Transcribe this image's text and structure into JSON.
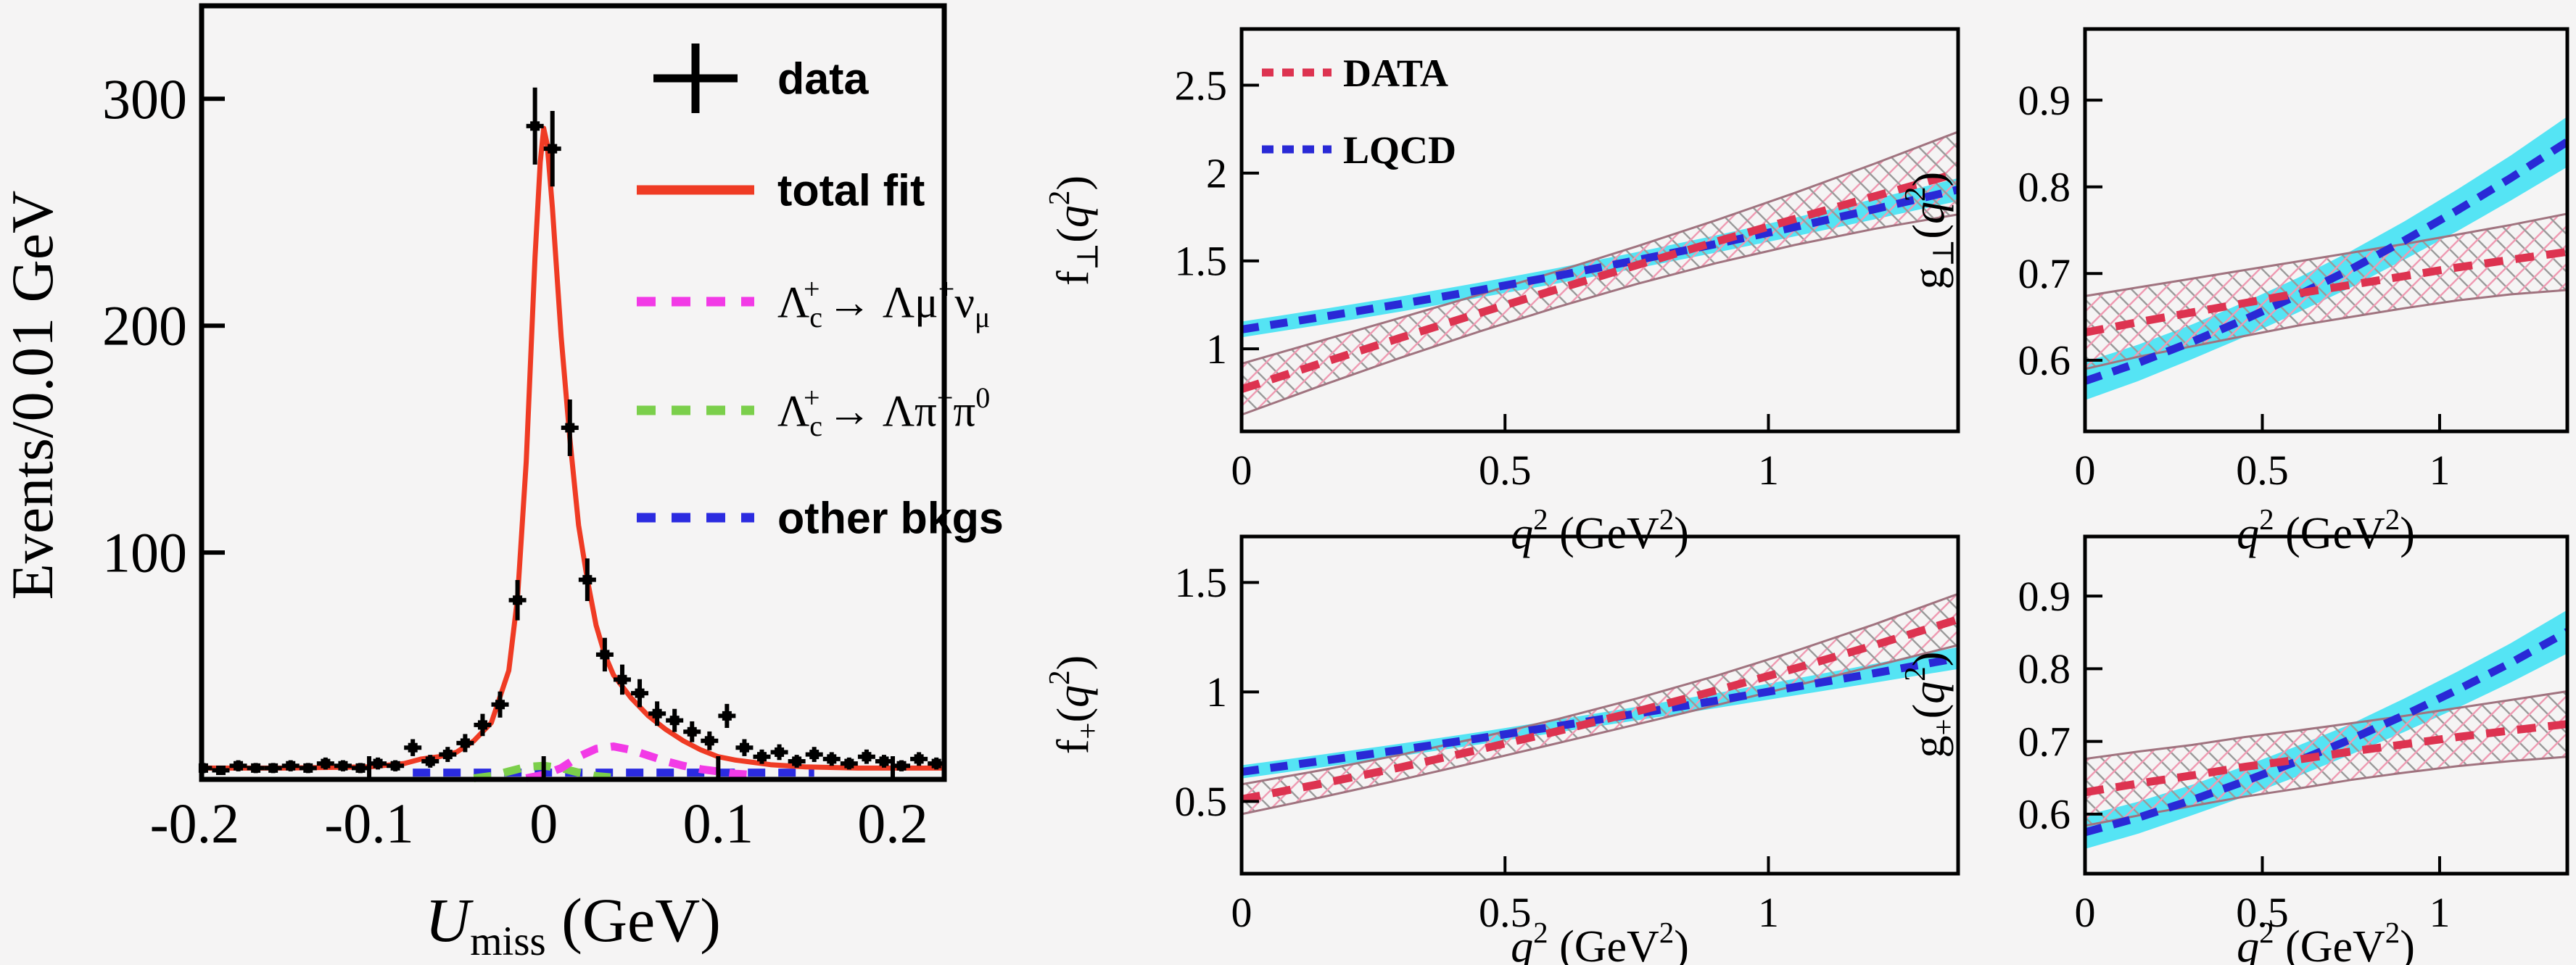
{
  "figure": {
    "background": "#f5f4f4",
    "frame_color": "#000000"
  },
  "chart_data": [
    {
      "id": "umiss",
      "type": "histogram-fit",
      "ylabel": "Events/0.01 GeV",
      "xlabel_segments": [
        {
          "t": "U",
          "italic": true
        },
        {
          "t": "miss",
          "sub": true
        },
        {
          "t": " (GeV)"
        }
      ],
      "xlim": [
        -0.196,
        0.2295
      ],
      "ylim": [
        0,
        341
      ],
      "xticks": [
        {
          "v": -0.2,
          "label": "-0.2"
        },
        {
          "v": -0.1,
          "label": "-0.1"
        },
        {
          "v": 0,
          "label": "0"
        },
        {
          "v": 0.1,
          "label": "0.1"
        },
        {
          "v": 0.2,
          "label": "0.2"
        }
      ],
      "yticks": [
        {
          "v": 100,
          "label": "100"
        },
        {
          "v": 200,
          "label": "200"
        },
        {
          "v": 300,
          "label": "300"
        }
      ],
      "marker_color": "#000000",
      "bins": {
        "start": -0.195,
        "step": 0.01,
        "values": [
          5,
          4,
          6,
          5,
          5,
          6,
          5,
          7,
          6,
          5,
          7,
          6,
          14,
          8,
          11,
          16,
          24,
          33,
          79,
          288,
          278,
          155,
          88,
          55,
          44,
          38,
          29,
          26,
          21,
          17,
          28,
          14,
          10,
          12,
          8,
          11,
          9,
          7,
          10,
          8,
          6,
          9,
          7
        ]
      },
      "fit": {
        "color": "#ef3b24",
        "points": {
          "x": [
            -0.196,
            -0.15,
            -0.1,
            -0.08,
            -0.07,
            -0.06,
            -0.05,
            -0.04,
            -0.03,
            -0.02,
            -0.015,
            -0.01,
            -0.005,
            -0.002,
            0,
            0.002,
            0.005,
            0.01,
            0.015,
            0.02,
            0.025,
            0.03,
            0.035,
            0.04,
            0.045,
            0.05,
            0.06,
            0.07,
            0.08,
            0.09,
            0.1,
            0.11,
            0.12,
            0.13,
            0.15,
            0.18,
            0.2295
          ],
          "y": [
            5,
            5,
            5.5,
            7,
            9,
            10,
            12,
            17,
            25,
            48,
            80,
            140,
            230,
            272,
            287,
            280,
            252,
            195,
            150,
            112,
            88,
            68,
            55,
            46,
            41,
            36,
            28,
            22,
            17,
            13,
            10,
            8.5,
            7.5,
            6.5,
            5.5,
            5,
            5
          ]
        }
      },
      "signal_mu": {
        "color": "#f23ae6",
        "points": {
          "x": [
            -0.01,
            0,
            0.01,
            0.02,
            0.03,
            0.04,
            0.05,
            0.06,
            0.07,
            0.08,
            0.09,
            0.1,
            0.11,
            0.12
          ],
          "y": [
            0.5,
            2,
            5,
            10,
            13.5,
            14.5,
            13,
            10.5,
            8,
            6,
            4.5,
            3.5,
            2.5,
            2
          ]
        }
      },
      "signal_pipi": {
        "color": "#7bcf4b",
        "points": {
          "x": [
            -0.04,
            -0.03,
            -0.02,
            -0.01,
            0,
            0.01,
            0.02,
            0.03,
            0.04
          ],
          "y": [
            0.5,
            1.5,
            3.5,
            5.5,
            6,
            5,
            3,
            1.5,
            0.8
          ]
        }
      },
      "other_bkg": {
        "color": "#2b2be0",
        "points": {
          "x": [
            -0.075,
            0.155
          ],
          "y": [
            3,
            3
          ]
        }
      },
      "legend": [
        {
          "marker": "cross",
          "color": "#000000",
          "bold_sans": true,
          "segments": [
            {
              "t": "data"
            }
          ]
        },
        {
          "marker": "line",
          "color": "#ef3b24",
          "bold_sans": true,
          "segments": [
            {
              "t": "total fit"
            }
          ]
        },
        {
          "marker": "dash",
          "color": "#f23ae6",
          "bold_sans": false,
          "segments": [
            {
              "t": "Λ"
            },
            {
              "t": "c",
              "sub": true
            },
            {
              "t": "+",
              "sup": true,
              "dx": -26
            },
            {
              "t": "→ Λμ",
              "dx": 10
            },
            {
              "t": "+",
              "sup": true
            },
            {
              "t": "ν"
            },
            {
              "t": "μ",
              "sub": true
            }
          ]
        },
        {
          "marker": "dash",
          "color": "#7bcf4b",
          "bold_sans": false,
          "segments": [
            {
              "t": "Λ"
            },
            {
              "t": "c",
              "sub": true
            },
            {
              "t": "+",
              "sup": true,
              "dx": -26
            },
            {
              "t": "→ Λπ",
              "dx": 10
            },
            {
              "t": "+",
              "sup": true
            },
            {
              "t": "π"
            },
            {
              "t": "0",
              "sup": true
            }
          ]
        },
        {
          "marker": "dash",
          "color": "#2b2be0",
          "bold_sans": true,
          "segments": [
            {
              "t": "other bkgs"
            }
          ]
        }
      ]
    },
    {
      "id": "f_perp",
      "type": "band-comparison",
      "ylabel_segments": [
        {
          "t": "f"
        },
        {
          "t": "⊥",
          "sub": true
        },
        {
          "t": "("
        },
        {
          "t": "q",
          "italic": true
        },
        {
          "t": "2",
          "sup": true
        },
        {
          "t": ")"
        }
      ],
      "xlabel_segments": [
        {
          "t": "q",
          "italic": true
        },
        {
          "t": "2",
          "sup": true
        },
        {
          "t": " (GeV"
        },
        {
          "t": "2",
          "sup": true
        },
        {
          "t": ")"
        }
      ],
      "xlim": [
        0,
        1.36
      ],
      "ylim": [
        0.53,
        2.82
      ],
      "xticks": [
        {
          "v": 0,
          "label": "0"
        },
        {
          "v": 0.5,
          "label": "0.5"
        },
        {
          "v": 1,
          "label": "1"
        }
      ],
      "yticks": [
        {
          "v": 1,
          "label": "1"
        },
        {
          "v": 1.5,
          "label": "1.5"
        },
        {
          "v": 2,
          "label": "2"
        },
        {
          "v": 2.5,
          "label": "2.5"
        }
      ],
      "x": [
        0,
        0.15,
        0.3,
        0.45,
        0.6,
        0.75,
        0.9,
        1.05,
        1.2,
        1.36
      ],
      "data_band": {
        "label": "DATA",
        "line_color": "#dd3350",
        "hatch_pink": "#ef9ab2",
        "hatch_gray": "#9b9b9b",
        "edge_color": "#a0737f",
        "center": [
          0.77,
          0.917,
          1.061,
          1.202,
          1.34,
          1.476,
          1.609,
          1.739,
          1.867,
          2.0
        ],
        "half_width": [
          0.145,
          0.128,
          0.114,
          0.105,
          0.102,
          0.107,
          0.122,
          0.148,
          0.185,
          0.235
        ]
      },
      "lqcd_band": {
        "label": "LQCD",
        "line_color": "#2929d6",
        "fill_color": "#55e4f4",
        "center": [
          1.11,
          1.18,
          1.254,
          1.333,
          1.416,
          1.504,
          1.596,
          1.693,
          1.794,
          1.906
        ],
        "half_width": [
          0.045,
          0.044,
          0.043,
          0.043,
          0.044,
          0.046,
          0.049,
          0.053,
          0.058,
          0.065
        ]
      },
      "legend": [
        {
          "marker": "dash",
          "color": "#dd3350",
          "label": "DATA"
        },
        {
          "marker": "dash",
          "color": "#2929d6",
          "label": "LQCD"
        }
      ]
    },
    {
      "id": "g_perp",
      "type": "band-comparison",
      "ylabel_segments": [
        {
          "t": "g"
        },
        {
          "t": "⊥",
          "sub": true
        },
        {
          "t": "("
        },
        {
          "t": "q",
          "italic": true
        },
        {
          "t": "2",
          "sup": true
        },
        {
          "t": ")"
        }
      ],
      "xlabel_segments": [
        {
          "t": "q",
          "italic": true
        },
        {
          "t": "2",
          "sup": true
        },
        {
          "t": " (GeV"
        },
        {
          "t": "2",
          "sup": true
        },
        {
          "t": ")"
        }
      ],
      "xlim": [
        0,
        1.36
      ],
      "ylim": [
        0.518,
        0.982
      ],
      "xticks": [
        {
          "v": 0,
          "label": "0"
        },
        {
          "v": 0.5,
          "label": "0.5"
        },
        {
          "v": 1,
          "label": "1"
        }
      ],
      "yticks": [
        {
          "v": 0.6,
          "label": "0.6"
        },
        {
          "v": 0.7,
          "label": "0.7"
        },
        {
          "v": 0.8,
          "label": "0.8"
        },
        {
          "v": 0.9,
          "label": "0.9"
        }
      ],
      "x": [
        0,
        0.15,
        0.3,
        0.45,
        0.6,
        0.75,
        0.9,
        1.05,
        1.2,
        1.36
      ],
      "data_band": {
        "label": "DATA",
        "line_color": "#dd3350",
        "hatch_pink": "#ef9ab2",
        "hatch_gray": "#9b9b9b",
        "edge_color": "#a0737f",
        "center": [
          0.632,
          0.644,
          0.655,
          0.666,
          0.677,
          0.687,
          0.697,
          0.707,
          0.716,
          0.725
        ],
        "half_width": [
          0.042,
          0.04,
          0.039,
          0.038,
          0.037,
          0.037,
          0.037,
          0.038,
          0.04,
          0.044
        ]
      },
      "lqcd_band": {
        "label": "LQCD",
        "line_color": "#2929d6",
        "fill_color": "#55e4f4",
        "center": [
          0.576,
          0.597,
          0.621,
          0.647,
          0.675,
          0.705,
          0.738,
          0.773,
          0.81,
          0.852
        ],
        "half_width": [
          0.022,
          0.021,
          0.02,
          0.02,
          0.02,
          0.021,
          0.022,
          0.024,
          0.026,
          0.029
        ]
      },
      "legend": []
    },
    {
      "id": "f_plus",
      "type": "band-comparison",
      "ylabel_segments": [
        {
          "t": "f"
        },
        {
          "t": "+",
          "sub": true
        },
        {
          "t": "("
        },
        {
          "t": "q",
          "italic": true
        },
        {
          "t": "2",
          "sup": true
        },
        {
          "t": ")"
        }
      ],
      "xlabel_segments": [
        {
          "t": "q",
          "italic": true
        },
        {
          "t": "2",
          "sup": true
        },
        {
          "t": " (GeV"
        },
        {
          "t": "2",
          "sup": true
        },
        {
          "t": ")"
        }
      ],
      "xlim": [
        0,
        1.36
      ],
      "ylim": [
        0.17,
        1.71
      ],
      "xticks": [
        {
          "v": 0,
          "label": "0"
        },
        {
          "v": 0.5,
          "label": "0.5"
        },
        {
          "v": 1,
          "label": "1"
        }
      ],
      "yticks": [
        {
          "v": 0.5,
          "label": "0.5"
        },
        {
          "v": 1,
          "label": "1"
        },
        {
          "v": 1.5,
          "label": "1.5"
        }
      ],
      "x": [
        0,
        0.15,
        0.3,
        0.45,
        0.6,
        0.75,
        0.9,
        1.05,
        1.2,
        1.36
      ],
      "data_band": {
        "label": "DATA",
        "line_color": "#dd3350",
        "hatch_pink": "#ef9ab2",
        "hatch_gray": "#9b9b9b",
        "edge_color": "#a0737f",
        "center": [
          0.51,
          0.58,
          0.655,
          0.736,
          0.821,
          0.911,
          1.006,
          1.107,
          1.213,
          1.331
        ],
        "half_width": [
          0.068,
          0.062,
          0.057,
          0.055,
          0.055,
          0.059,
          0.067,
          0.079,
          0.095,
          0.117
        ]
      },
      "lqcd_band": {
        "label": "LQCD",
        "line_color": "#2929d6",
        "fill_color": "#55e4f4",
        "center": [
          0.635,
          0.684,
          0.735,
          0.788,
          0.844,
          0.901,
          0.96,
          1.022,
          1.085,
          1.155
        ],
        "half_width": [
          0.03,
          0.029,
          0.028,
          0.028,
          0.029,
          0.031,
          0.034,
          0.038,
          0.043,
          0.05
        ]
      },
      "legend": []
    },
    {
      "id": "g_plus",
      "type": "band-comparison",
      "ylabel_segments": [
        {
          "t": "g"
        },
        {
          "t": "+",
          "sub": true
        },
        {
          "t": "("
        },
        {
          "t": "q",
          "italic": true
        },
        {
          "t": "2",
          "sup": true
        },
        {
          "t": ")"
        }
      ],
      "xlabel_segments": [
        {
          "t": "q",
          "italic": true
        },
        {
          "t": "2",
          "sup": true
        },
        {
          "t": " (GeV"
        },
        {
          "t": "2",
          "sup": true
        },
        {
          "t": ")"
        }
      ],
      "xlim": [
        0,
        1.36
      ],
      "ylim": [
        0.518,
        0.982
      ],
      "xticks": [
        {
          "v": 0,
          "label": "0"
        },
        {
          "v": 0.5,
          "label": "0.5"
        },
        {
          "v": 1,
          "label": "1"
        }
      ],
      "yticks": [
        {
          "v": 0.6,
          "label": "0.6"
        },
        {
          "v": 0.7,
          "label": "0.7"
        },
        {
          "v": 0.8,
          "label": "0.8"
        },
        {
          "v": 0.9,
          "label": "0.9"
        }
      ],
      "x": [
        0,
        0.15,
        0.3,
        0.45,
        0.6,
        0.75,
        0.9,
        1.05,
        1.2,
        1.36
      ],
      "data_band": {
        "label": "DATA",
        "line_color": "#dd3350",
        "hatch_pink": "#ef9ab2",
        "hatch_gray": "#9b9b9b",
        "edge_color": "#a0737f",
        "center": [
          0.63,
          0.642,
          0.653,
          0.665,
          0.675,
          0.686,
          0.696,
          0.706,
          0.715,
          0.724
        ],
        "half_width": [
          0.046,
          0.044,
          0.042,
          0.041,
          0.04,
          0.039,
          0.039,
          0.04,
          0.042,
          0.045
        ]
      },
      "lqcd_band": {
        "label": "LQCD",
        "line_color": "#2929d6",
        "fill_color": "#55e4f4",
        "center": [
          0.575,
          0.595,
          0.619,
          0.645,
          0.673,
          0.703,
          0.736,
          0.771,
          0.808,
          0.851
        ],
        "half_width": [
          0.023,
          0.022,
          0.021,
          0.021,
          0.021,
          0.021,
          0.023,
          0.025,
          0.027,
          0.03
        ]
      },
      "legend": []
    }
  ]
}
